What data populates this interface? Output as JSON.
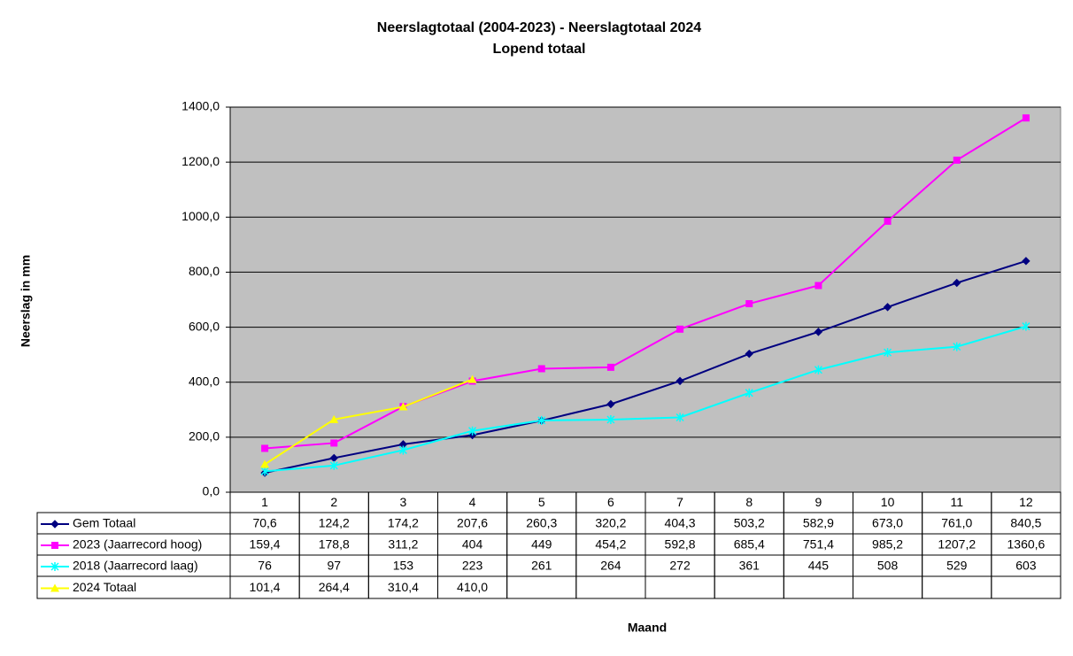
{
  "chart_data": {
    "type": "line",
    "title": "Neerslagtotaal (2004-2023)  - Neerslagtotaal 2024",
    "subtitle": "Lopend totaal",
    "y_label": "Neerslag in mm",
    "x_label": "Maand",
    "categories": [
      "1",
      "2",
      "3",
      "4",
      "5",
      "6",
      "7",
      "8",
      "9",
      "10",
      "11",
      "12"
    ],
    "ylim": [
      0,
      1400
    ],
    "yticks": [
      {
        "value": 0,
        "label": "0,0"
      },
      {
        "value": 200,
        "label": "200,0"
      },
      {
        "value": 400,
        "label": "400,0"
      },
      {
        "value": 600,
        "label": "600,0"
      },
      {
        "value": 800,
        "label": "800,0"
      },
      {
        "value": 1000,
        "label": "1000,0"
      },
      {
        "value": 1200,
        "label": "1200,0"
      },
      {
        "value": 1400,
        "label": "1400,0"
      }
    ],
    "grid": true,
    "plot_background": "#c0c0c0",
    "series": [
      {
        "name": "Gem Totaal",
        "color": "#000080",
        "marker": "diamond",
        "values": [
          70.6,
          124.2,
          174.2,
          207.6,
          260.3,
          320.2,
          404.3,
          503.2,
          582.9,
          673.0,
          761.0,
          840.5
        ],
        "value_labels": [
          "70,6",
          "124,2",
          "174,2",
          "207,6",
          "260,3",
          "320,2",
          "404,3",
          "503,2",
          "582,9",
          "673,0",
          "761,0",
          "840,5"
        ]
      },
      {
        "name": "2023 (Jaarrecord hoog)",
        "color": "#ff00ff",
        "marker": "square",
        "values": [
          159.4,
          178.8,
          311.2,
          404,
          449,
          454.2,
          592.8,
          685.4,
          751.4,
          985.2,
          1207.2,
          1360.6
        ],
        "value_labels": [
          "159,4",
          "178,8",
          "311,2",
          "404",
          "449",
          "454,2",
          "592,8",
          "685,4",
          "751,4",
          "985,2",
          "1207,2",
          "1360,6"
        ]
      },
      {
        "name": "2018 (Jaarrecord laag)",
        "color": "#00ffff",
        "marker": "x",
        "values": [
          76,
          97,
          153,
          223,
          261,
          264,
          272,
          361,
          445,
          508,
          529,
          603
        ],
        "value_labels": [
          "76",
          "97",
          "153",
          "223",
          "261",
          "264",
          "272",
          "361",
          "445",
          "508",
          "529",
          "603"
        ]
      },
      {
        "name": "2024 Totaal",
        "color": "#ffff00",
        "marker": "triangle",
        "values": [
          101.4,
          264.4,
          310.4,
          410.0,
          null,
          null,
          null,
          null,
          null,
          null,
          null,
          null
        ],
        "value_labels": [
          "101,4",
          "264,4",
          "310,4",
          "410,0",
          null,
          null,
          null,
          null,
          null,
          null,
          null,
          null
        ]
      }
    ]
  }
}
